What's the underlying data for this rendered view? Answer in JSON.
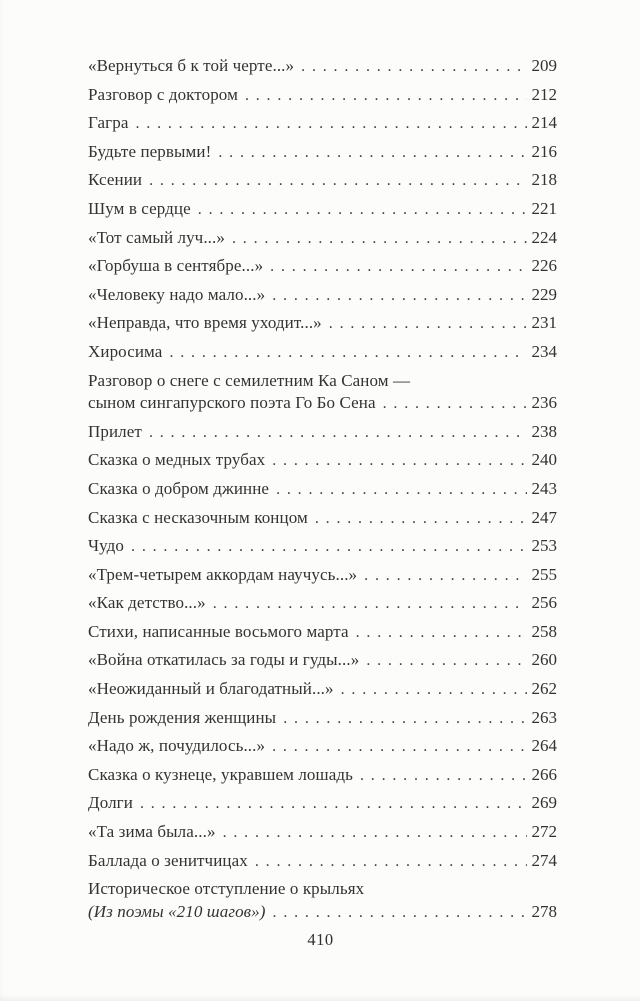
{
  "page": {
    "background_color": "#fcfcfb",
    "text_color": "#333333",
    "folio": "410"
  },
  "toc": {
    "lines": [
      {
        "text": "«Вернуться б к той черте...»",
        "page": "209"
      },
      {
        "text": "Разговор с доктором",
        "page": "212"
      },
      {
        "text": "Гагра",
        "page": "214"
      },
      {
        "text": "Будьте первыми!",
        "page": "216"
      },
      {
        "text": "Ксении",
        "page": "218"
      },
      {
        "text": "Шум в сердце",
        "page": "221"
      },
      {
        "text": "«Тот самый луч...»",
        "page": "224"
      },
      {
        "text": "«Горбуша в сентябре...»",
        "page": "226"
      },
      {
        "text": "«Человеку надо мало...»",
        "page": "229"
      },
      {
        "text": "«Неправда, что время уходит...»",
        "page": "231"
      },
      {
        "text": "Хиросима",
        "page": "234"
      },
      {
        "text": "Разговор о снеге с семилетним Ка Саном —",
        "wrap_start": true
      },
      {
        "text": "сыном сингапурского поэта Го Бо Сена",
        "page": "236",
        "cont": true
      },
      {
        "text": "Прилет",
        "page": "238"
      },
      {
        "text": "Сказка о медных трубах",
        "page": "240"
      },
      {
        "text": "Сказка о добром джинне",
        "page": "243"
      },
      {
        "text": "Сказка с несказочным концом",
        "page": "247"
      },
      {
        "text": "Чудо",
        "page": "253"
      },
      {
        "text": "«Трем-четырем аккордам научусь...»",
        "page": "255"
      },
      {
        "text": "«Как детство...»",
        "page": "256"
      },
      {
        "text": "Стихи, написанные восьмого марта",
        "page": "258"
      },
      {
        "text": "«Война откатилась за годы и гуды...»",
        "page": "260"
      },
      {
        "text": "«Неожиданный и благодатный...»",
        "page": "262"
      },
      {
        "text": "День рождения женщины",
        "page": "263"
      },
      {
        "text": "«Надо ж, почудилось...»",
        "page": "264"
      },
      {
        "text": "Сказка о кузнеце, укравшем лошадь",
        "page": "266"
      },
      {
        "text": "Долги",
        "page": "269"
      },
      {
        "text": "«Та зима была...»",
        "page": "272"
      },
      {
        "text": "Баллада о зенитчицах",
        "page": "274"
      },
      {
        "text": "Историческое отступление о крыльях",
        "wrap_start": true
      },
      {
        "text": "(Из поэмы «210 шагов»)",
        "page": "278",
        "cont": true,
        "italic": true
      }
    ]
  }
}
